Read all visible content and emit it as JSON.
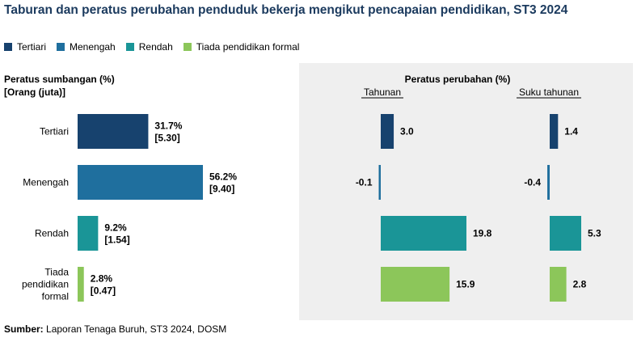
{
  "title": "Taburan dan peratus perubahan penduduk bekerja mengikut pencapaian pendidikan, ST3 2024",
  "legend": [
    {
      "label": "Tertiari",
      "color": "#17426e"
    },
    {
      "label": "Menengah",
      "color": "#1f6f9e"
    },
    {
      "label": "Rendah",
      "color": "#1a9597"
    },
    {
      "label": "Tiada pendidikan formal",
      "color": "#8cc65a"
    }
  ],
  "source": {
    "label": "Sumber:",
    "text": " Laporan Tenaga Buruh, ST3 2024, DOSM"
  },
  "chart_data": [
    {
      "type": "bar",
      "orientation": "horizontal",
      "title": "Peratus sumbangan (%)",
      "subtitle": "[Orang (juta)]",
      "categories": [
        "Tertiari",
        "Menengah",
        "Rendah",
        "Tiada pendidikan formal"
      ],
      "category_labels": [
        [
          "Tertiari"
        ],
        [
          "Menengah"
        ],
        [
          "Rendah"
        ],
        [
          "Tiada",
          "pendidikan",
          "formal"
        ]
      ],
      "series": [
        {
          "values": [
            31.7,
            56.2,
            9.2,
            2.8
          ]
        }
      ],
      "value_labels": [
        "31.7%",
        "56.2%",
        "9.2%",
        "2.8%"
      ],
      "secondary_labels": [
        "[5.30]",
        "[9.40]",
        "[1.54]",
        "[0.47]"
      ],
      "secondary_values": [
        5.3,
        9.4,
        1.54,
        0.47
      ],
      "colors": [
        "#17426e",
        "#1f6f9e",
        "#1a9597",
        "#8cc65a"
      ],
      "grid": false
    },
    {
      "type": "bar",
      "orientation": "horizontal",
      "title": "Peratus perubahan (%)",
      "panels": [
        {
          "label": "Tahunan",
          "values": [
            3.0,
            -0.1,
            19.8,
            15.9
          ],
          "value_labels": [
            "3.0",
            "-0.1",
            "19.8",
            "15.9"
          ]
        },
        {
          "label": "Suku tahunan",
          "values": [
            1.4,
            -0.4,
            5.3,
            2.8
          ],
          "value_labels": [
            "1.4",
            "-0.4",
            "5.3",
            "2.8"
          ]
        }
      ],
      "categories": [
        "Tertiari",
        "Menengah",
        "Rendah",
        "Tiada pendidikan formal"
      ],
      "colors": [
        "#17426e",
        "#1f6f9e",
        "#1a9597",
        "#8cc65a"
      ],
      "background": "#efefef",
      "grid": false
    }
  ]
}
